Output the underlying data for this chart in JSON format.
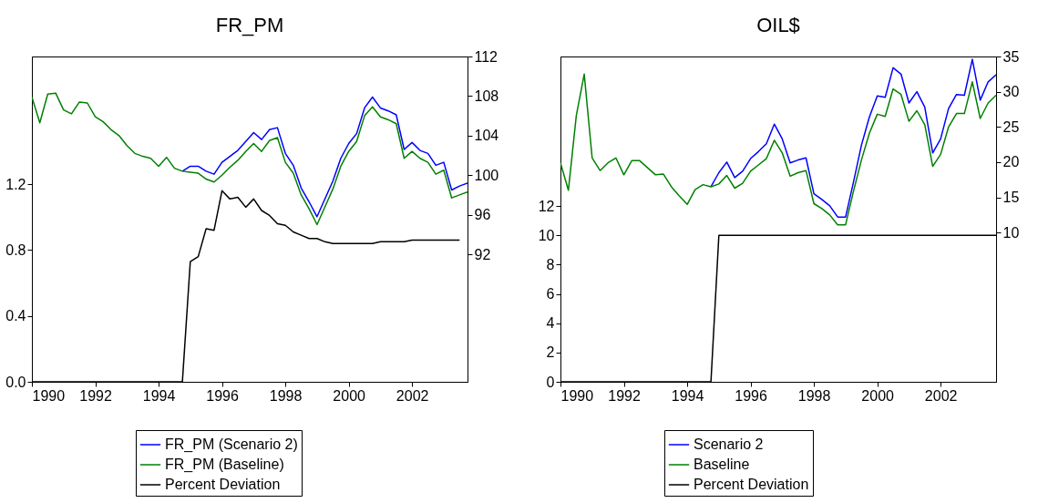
{
  "chart_data": [
    {
      "type": "line",
      "title": "FR_PM",
      "x": [
        1990,
        1990.25,
        1990.5,
        1990.75,
        1991,
        1991.25,
        1991.5,
        1991.75,
        1992,
        1992.25,
        1992.5,
        1992.75,
        1993,
        1993.25,
        1993.5,
        1993.75,
        1994,
        1994.25,
        1994.5,
        1994.75,
        1995,
        1995.25,
        1995.5,
        1995.75,
        1996,
        1996.25,
        1996.5,
        1996.75,
        1997,
        1997.25,
        1997.5,
        1997.75,
        1998,
        1998.25,
        1998.5,
        1998.75,
        1999,
        1999.25,
        1999.5,
        1999.75,
        2000,
        2000.25,
        2000.5,
        2000.75,
        2001,
        2001.25,
        2001.5,
        2001.75,
        2002,
        2002.25,
        2002.5,
        2002.75,
        2003,
        2003.25,
        2003.5,
        2003.75
      ],
      "xlim": [
        1990,
        2003.75
      ],
      "xticks": [
        1990,
        1992,
        1994,
        1996,
        1998,
        2000,
        2002
      ],
      "ylim": [
        0,
        1.975
      ],
      "yticks": [
        {
          "value": 0,
          "label": "0.0"
        },
        0.4,
        0.8,
        1.2
      ],
      "y2lim": [
        79.1,
        112
      ],
      "y2ticks": [
        92,
        96,
        100,
        104,
        108,
        112
      ],
      "legend": "bottom",
      "series": [
        {
          "name": "FR_PM (Scenario 2)",
          "color": "#0000ff",
          "axis": "y2",
          "values": [
            null,
            null,
            null,
            null,
            null,
            null,
            null,
            null,
            null,
            null,
            null,
            null,
            null,
            null,
            null,
            null,
            null,
            null,
            null,
            100.4,
            100.9,
            100.9,
            100.4,
            100.1,
            101.3,
            101.9,
            102.5,
            103.4,
            104.3,
            103.6,
            104.6,
            104.8,
            102.2,
            101.0,
            98.7,
            97.3,
            95.8,
            97.6,
            99.4,
            101.7,
            103.2,
            104.2,
            106.8,
            107.9,
            106.8,
            106.5,
            106.1,
            102.6,
            103.3,
            102.5,
            102.2,
            101.0,
            101.3,
            98.5,
            98.9,
            99.2
          ]
        },
        {
          "name": "FR_PM (Baseline)",
          "color": "#008000",
          "axis": "y2",
          "values": [
            107.9,
            105.3,
            108.2,
            108.3,
            106.6,
            106.2,
            107.4,
            107.3,
            105.9,
            105.4,
            104.6,
            104.0,
            103.0,
            102.2,
            101.9,
            101.7,
            100.9,
            101.8,
            100.7,
            100.4,
            100.3,
            100.2,
            99.6,
            99.3,
            100.0,
            100.8,
            101.5,
            102.4,
            103.2,
            102.4,
            103.5,
            103.8,
            101.3,
            100.2,
            98.0,
            96.6,
            95.0,
            96.8,
            98.6,
            100.9,
            102.4,
            103.4,
            106.0,
            106.9,
            105.9,
            105.6,
            105.2,
            101.7,
            102.4,
            101.7,
            101.3,
            100.1,
            100.5,
            97.7,
            98.0,
            98.3
          ]
        },
        {
          "name": "Percent Deviation",
          "color": "#000000",
          "axis": "y",
          "values": [
            0,
            0,
            0,
            0,
            0,
            0,
            0,
            0,
            0,
            0,
            0,
            0,
            0,
            0,
            0,
            0,
            0,
            0,
            0,
            0,
            0.73,
            0.76,
            0.93,
            0.92,
            1.16,
            1.11,
            1.12,
            1.06,
            1.11,
            1.04,
            1.01,
            0.96,
            0.95,
            0.91,
            0.89,
            0.87,
            0.87,
            0.85,
            0.84,
            0.84,
            0.84,
            0.84,
            0.84,
            0.84,
            0.85,
            0.85,
            0.85,
            0.85,
            0.86,
            0.86,
            0.86,
            0.86,
            0.86,
            0.86,
            0.86,
            null
          ]
        }
      ]
    },
    {
      "type": "line",
      "title": "OIL$",
      "x": [
        1990,
        1990.25,
        1990.5,
        1990.75,
        1991,
        1991.25,
        1991.5,
        1991.75,
        1992,
        1992.25,
        1992.5,
        1992.75,
        1993,
        1993.25,
        1993.5,
        1993.75,
        1994,
        1994.25,
        1994.5,
        1994.75,
        1995,
        1995.25,
        1995.5,
        1995.75,
        1996,
        1996.25,
        1996.5,
        1996.75,
        1997,
        1997.25,
        1997.5,
        1997.75,
        1998,
        1998.25,
        1998.5,
        1998.75,
        1999,
        1999.25,
        1999.5,
        1999.75,
        2000,
        2000.25,
        2000.5,
        2000.75,
        2001,
        2001.25,
        2001.5,
        2001.75,
        2002,
        2002.25,
        2002.5,
        2002.75,
        2003,
        2003.25,
        2003.5,
        2003.75
      ],
      "xlim": [
        1990,
        2003.75
      ],
      "xticks": [
        1990,
        1992,
        1994,
        1996,
        1998,
        2000,
        2002
      ],
      "ylim": [
        0,
        22.2
      ],
      "yticks": [
        0,
        2,
        4,
        6,
        8,
        10,
        12
      ],
      "y2lim": [
        -11.2,
        35
      ],
      "y2ticks": [
        10,
        15,
        20,
        25,
        30,
        35
      ],
      "legend": "bottom",
      "series": [
        {
          "name": "Scenario 2",
          "color": "#0000ff",
          "axis": "y2",
          "values": [
            null,
            null,
            null,
            null,
            null,
            null,
            null,
            null,
            null,
            null,
            null,
            null,
            null,
            null,
            null,
            null,
            null,
            null,
            null,
            16.5,
            18.5,
            20.0,
            17.8,
            18.7,
            20.5,
            21.5,
            22.6,
            25.4,
            23.3,
            19.9,
            20.3,
            20.6,
            15.5,
            14.7,
            13.8,
            12.2,
            12.2,
            17.2,
            22.4,
            26.4,
            29.4,
            29.2,
            33.4,
            32.5,
            28.4,
            30.0,
            27.8,
            21.3,
            23.3,
            27.6,
            29.6,
            29.5,
            34.6,
            28.8,
            31.4,
            32.4
          ]
        },
        {
          "name": "Baseline",
          "color": "#008000",
          "axis": "y2",
          "values": [
            19.9,
            16.0,
            26.6,
            32.5,
            20.6,
            18.8,
            19.9,
            20.6,
            18.2,
            20.2,
            20.2,
            19.2,
            18.2,
            18.3,
            16.5,
            15.2,
            14.0,
            16.1,
            16.8,
            16.5,
            16.9,
            18.1,
            16.3,
            17.0,
            18.7,
            19.6,
            20.5,
            23.1,
            21.3,
            18.0,
            18.5,
            18.8,
            14.1,
            13.4,
            12.5,
            11.1,
            11.1,
            15.9,
            20.3,
            24.1,
            26.8,
            26.5,
            30.4,
            29.6,
            25.8,
            27.3,
            25.3,
            19.4,
            21.1,
            25.0,
            26.9,
            26.9,
            31.4,
            26.2,
            28.4,
            29.5
          ]
        },
        {
          "name": "Percent Deviation",
          "color": "#000000",
          "axis": "y",
          "values": [
            0,
            0,
            0,
            0,
            0,
            0,
            0,
            0,
            0,
            0,
            0,
            0,
            0,
            0,
            0,
            0,
            0,
            0,
            0,
            0,
            10,
            10,
            10,
            10,
            10,
            10,
            10,
            10,
            10,
            10,
            10,
            10,
            10,
            10,
            10,
            10,
            10,
            10,
            10,
            10,
            10,
            10,
            10,
            10,
            10,
            10,
            10,
            10,
            10,
            10,
            10,
            10,
            10,
            10,
            10,
            10
          ]
        }
      ]
    }
  ]
}
